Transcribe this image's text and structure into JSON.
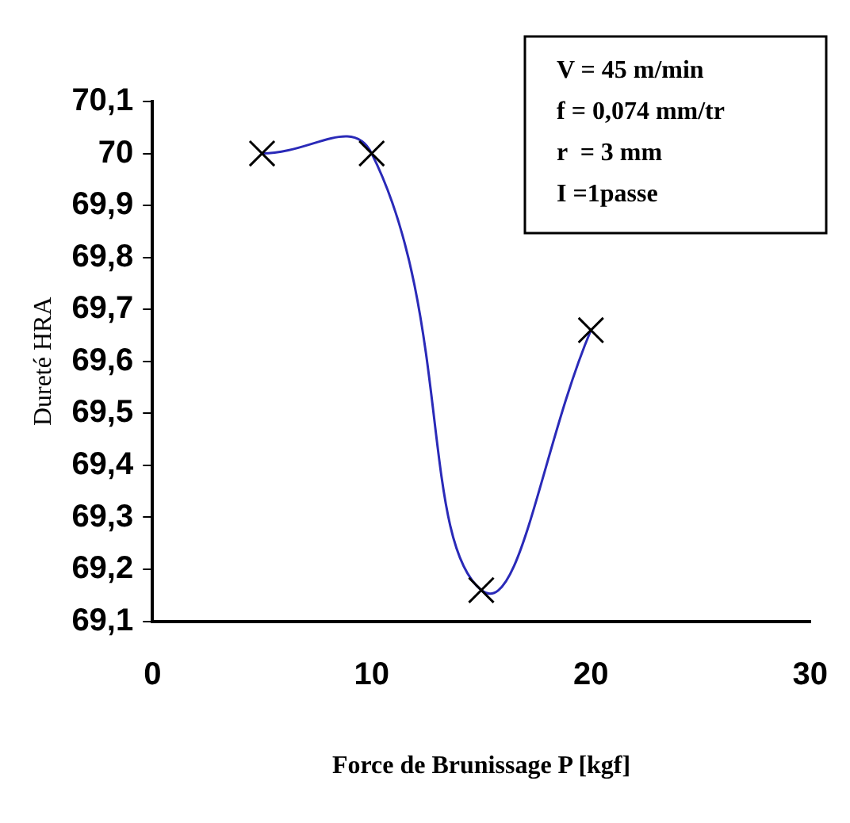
{
  "chart_data": {
    "type": "scatter",
    "xlabel": "Force de Brunissage P [kgf]",
    "ylabel": "Dureté HRA",
    "annotations": [
      "V = 45 m/min",
      "f = 0,074 mm/tr",
      "r  = 3 mm",
      "I =1passe"
    ],
    "x": [
      5,
      10,
      15,
      20
    ],
    "series": [
      {
        "color": "#000000",
        "marker": "cross",
        "values": [
          70,
          70,
          69.16,
          69.66
        ]
      },
      {
        "type": "line",
        "color": "#2a2ab8",
        "values": [
          70,
          70,
          69.16,
          69.66
        ]
      }
    ],
    "xlim": [
      0,
      30
    ],
    "xticks": [
      0,
      10,
      20,
      30
    ],
    "ylim": [
      69.1,
      70.1
    ],
    "yticks": [
      {
        "value": 69.1,
        "label": "69,1"
      },
      {
        "value": 69.2,
        "label": "69,2"
      },
      {
        "value": 69.3,
        "label": "69,3"
      },
      {
        "value": 69.4,
        "label": "69,4"
      },
      {
        "value": 69.5,
        "label": "69,5"
      },
      {
        "value": 69.6,
        "label": "69,6"
      },
      {
        "value": 69.7,
        "label": "69,7"
      },
      {
        "value": 69.8,
        "label": "69,8"
      },
      {
        "value": 69.9,
        "label": "69,9"
      },
      70,
      {
        "value": 70.1,
        "label": "70,1"
      }
    ],
    "grid": false
  }
}
